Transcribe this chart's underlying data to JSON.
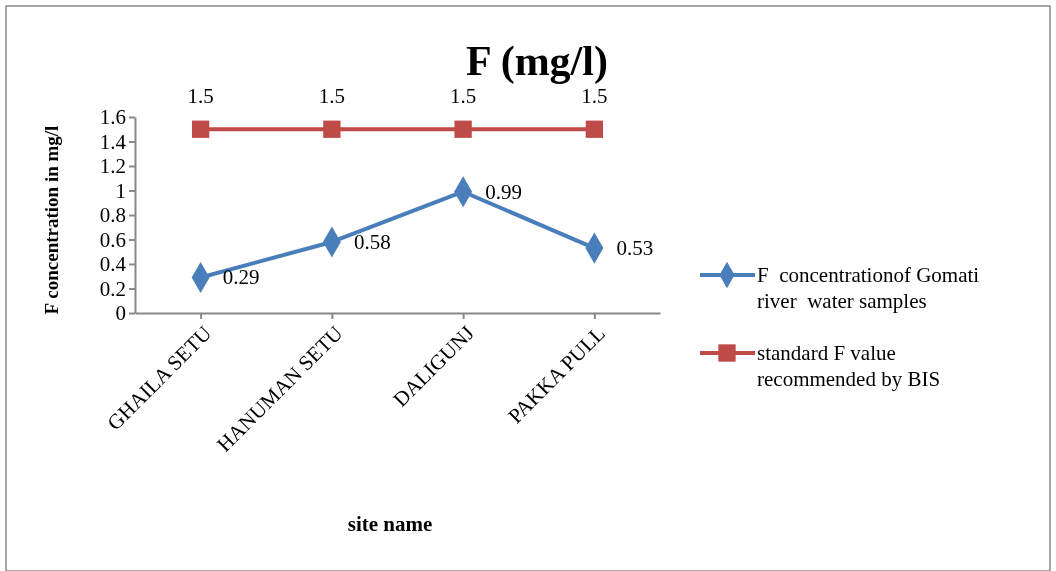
{
  "chart_data": {
    "type": "line",
    "title": "F (mg/l)",
    "xlabel": "site name",
    "ylabel": "F concentration in mg/l",
    "categories": [
      "GHAILA SETU",
      "HANUMAN SETU",
      "DALIGUNJ",
      "PAKKA PULL"
    ],
    "series": [
      {
        "name": "F  concentrationof Gomati river  water samples",
        "color": "#4a7ebb",
        "values": [
          0.29,
          0.58,
          0.99,
          0.53
        ],
        "marker": "diamond"
      },
      {
        "name": "standard F value recommended by BIS",
        "color": "#be4b48",
        "values": [
          1.5,
          1.5,
          1.5,
          1.5
        ],
        "marker": "square"
      }
    ],
    "ylim": [
      0,
      1.6
    ],
    "yticks": [
      0,
      0.2,
      0.4,
      0.6,
      0.8,
      1,
      1.2,
      1.4,
      1.6
    ],
    "data_labels": true,
    "legend": "right",
    "grid": false
  }
}
